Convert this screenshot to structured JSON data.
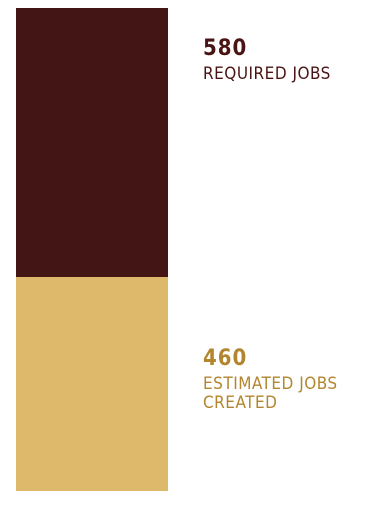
{
  "chart_data": {
    "type": "bar",
    "orientation": "stacked-column",
    "title": "",
    "xlabel": "",
    "ylabel": "",
    "series": [
      {
        "value": 580,
        "value_label": "580",
        "label": "REQUIRED JOBS",
        "color": "#441515",
        "text_color": "#4a1414"
      },
      {
        "value": 460,
        "value_label": "460",
        "label": "ESTIMATED JOBS CREATED",
        "color": "#dfb96b",
        "text_color": "#b2852e"
      }
    ],
    "grid": false,
    "legend": "none"
  }
}
